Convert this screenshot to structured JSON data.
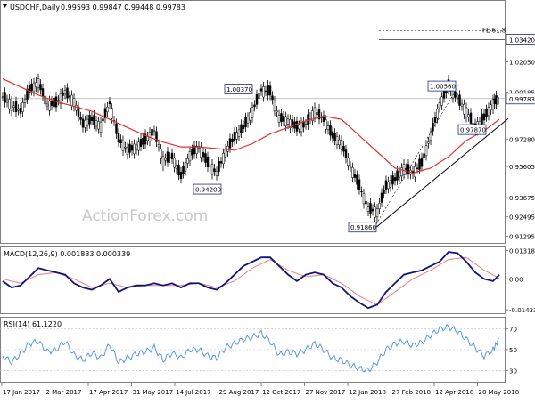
{
  "chart_data": [
    {
      "type": "candlestick",
      "title": "USDCHF,Daily",
      "ohlc_label": "0.99593 0.99847 0.99448 0.99783",
      "ylim": [
        0.9094,
        1.052
      ],
      "y_ticks": [
        "1.02050",
        "1.00185",
        "0.99783",
        "0.97280",
        "0.95605",
        "0.93675",
        "0.92495",
        "0.91295"
      ],
      "y_tick_values": [
        1.0205,
        1.00185,
        0.99783,
        0.9728,
        0.95605,
        0.93675,
        0.92495,
        0.91295
      ],
      "current_price": "0.99783",
      "fib_level": {
        "label": "FE 61.8",
        "value": "1.03420",
        "y": 1.0342
      },
      "watermark": "ActionForex.com",
      "annotations": [
        {
          "text": "1.00370",
          "x": 283,
          "y": 1.0037
        },
        {
          "text": "0.94200",
          "x": 248,
          "y": 0.942
        },
        {
          "text": "0.91860",
          "x": 422,
          "y": 0.9186
        },
        {
          "text": "1.00560",
          "x": 511,
          "y": 1.0056
        },
        {
          "text": "0.97870",
          "x": 545,
          "y": 0.9787
        }
      ],
      "series": [
        {
          "name": "",
          "kind": "close",
          "x": [
            0,
            10,
            20,
            30,
            40,
            50,
            60,
            70,
            80,
            90,
            100,
            110,
            120,
            130,
            140,
            150,
            160,
            170,
            180,
            190,
            200,
            210,
            220,
            230,
            240,
            250,
            260,
            270,
            280,
            290,
            300,
            310,
            320,
            330,
            340,
            350,
            360,
            370,
            380,
            390,
            400,
            410,
            420,
            430,
            440,
            450,
            460,
            470,
            480,
            490,
            500,
            510,
            520,
            530,
            540,
            550,
            557
          ],
          "y": [
            0.999,
            0.994,
            0.99,
            1.003,
            1.008,
            0.994,
            0.995,
            1.002,
            0.996,
            0.982,
            0.985,
            0.981,
            0.995,
            0.973,
            0.966,
            0.968,
            0.972,
            0.978,
            0.96,
            0.962,
            0.95,
            0.963,
            0.968,
            0.958,
            0.952,
            0.965,
            0.974,
            0.98,
            0.99,
            1.003,
            1.002,
            0.986,
            0.984,
            0.98,
            0.982,
            0.99,
            0.985,
            0.975,
            0.97,
            0.956,
            0.944,
            0.93,
            0.928,
            0.944,
            0.948,
            0.955,
            0.952,
            0.958,
            0.975,
            0.994,
            1.0056,
            0.998,
            0.99,
            0.98,
            0.986,
            0.995,
            0.9978
          ]
        },
        {
          "name": "",
          "kind": "moving-average",
          "x": [
            0,
            20,
            40,
            60,
            80,
            100,
            120,
            140,
            160,
            180,
            200,
            220,
            240,
            260,
            280,
            300,
            320,
            340,
            360,
            380,
            400,
            420,
            440,
            460,
            480,
            500,
            520,
            540,
            557
          ],
          "y": [
            1.01,
            1.005,
            1.0,
            0.996,
            0.993,
            0.99,
            0.985,
            0.98,
            0.975,
            0.971,
            0.968,
            0.968,
            0.967,
            0.966,
            0.97,
            0.976,
            0.98,
            0.984,
            0.987,
            0.985,
            0.975,
            0.965,
            0.955,
            0.952,
            0.955,
            0.962,
            0.972,
            0.978,
            0.985
          ]
        }
      ],
      "trendline": {
        "x": [
          422,
          570
        ],
        "y": [
          0.9186,
          0.9855
        ]
      }
    },
    {
      "type": "line",
      "title": "MACD(12,26,9) 0.001883 0.000339",
      "y_ticks": [
        "0.013184",
        "0.00",
        "-0.014339"
      ],
      "y_tick_values": [
        0.013184,
        0,
        -0.014339
      ],
      "ylim": [
        -0.0155,
        0.0142
      ],
      "series": [
        {
          "name": "",
          "kind": "macd",
          "x": [
            0,
            10,
            20,
            30,
            40,
            50,
            60,
            70,
            80,
            90,
            100,
            110,
            120,
            130,
            140,
            150,
            160,
            170,
            180,
            190,
            200,
            210,
            220,
            230,
            240,
            250,
            260,
            270,
            280,
            290,
            300,
            310,
            320,
            330,
            340,
            350,
            360,
            370,
            380,
            390,
            400,
            410,
            420,
            430,
            440,
            450,
            460,
            470,
            480,
            490,
            500,
            510,
            520,
            530,
            540,
            550,
            557
          ],
          "y": [
            -0.001,
            -0.004,
            -0.003,
            0.001,
            0.005,
            0.004,
            0.003,
            0.002,
            -0.002,
            -0.004,
            -0.005,
            -0.003,
            0.0,
            -0.006,
            -0.004,
            -0.003,
            -0.003,
            -0.002,
            -0.003,
            -0.002,
            -0.004,
            -0.002,
            -0.002,
            -0.004,
            -0.005,
            -0.002,
            0.002,
            0.006,
            0.008,
            0.01,
            0.01,
            0.006,
            0.002,
            -0.001,
            0.002,
            0.003,
            0.002,
            -0.002,
            -0.004,
            -0.008,
            -0.011,
            -0.0135,
            -0.012,
            -0.006,
            -0.002,
            0.002,
            0.003,
            0.004,
            0.006,
            0.008,
            0.0125,
            0.012,
            0.008,
            0.003,
            0.0,
            -0.001,
            0.0019
          ]
        },
        {
          "name": "",
          "kind": "signal",
          "x": [
            0,
            20,
            40,
            60,
            80,
            100,
            120,
            140,
            160,
            180,
            200,
            220,
            240,
            260,
            280,
            300,
            320,
            340,
            360,
            380,
            400,
            420,
            440,
            460,
            480,
            500,
            520,
            540,
            557
          ],
          "y": [
            0.0,
            -0.002,
            0.002,
            0.003,
            0.0,
            -0.004,
            -0.002,
            -0.004,
            -0.003,
            -0.003,
            -0.003,
            -0.002,
            -0.004,
            -0.001,
            0.005,
            0.009,
            0.004,
            0.001,
            0.002,
            -0.002,
            -0.008,
            -0.012,
            -0.006,
            0.0,
            0.004,
            0.009,
            0.01,
            0.004,
            0.0003
          ]
        }
      ]
    },
    {
      "type": "line",
      "title": "RSI(14) 61.1220",
      "y_ticks": [
        "70",
        "50",
        "30"
      ],
      "y_tick_values": [
        70,
        50,
        30
      ],
      "ylim": [
        20,
        80
      ],
      "series": [
        {
          "name": "",
          "kind": "rsi",
          "x": [
            0,
            10,
            20,
            30,
            40,
            50,
            60,
            70,
            80,
            90,
            100,
            110,
            120,
            130,
            140,
            150,
            160,
            170,
            180,
            190,
            200,
            210,
            220,
            230,
            240,
            250,
            260,
            270,
            280,
            290,
            300,
            310,
            320,
            330,
            340,
            350,
            360,
            370,
            380,
            390,
            400,
            410,
            420,
            430,
            440,
            450,
            460,
            470,
            480,
            490,
            500,
            510,
            520,
            530,
            540,
            550,
            557
          ],
          "y": [
            44,
            38,
            46,
            56,
            58,
            48,
            50,
            58,
            45,
            40,
            47,
            42,
            55,
            38,
            42,
            46,
            48,
            52,
            40,
            47,
            42,
            50,
            50,
            44,
            42,
            52,
            56,
            60,
            62,
            66,
            58,
            45,
            48,
            46,
            50,
            56,
            50,
            42,
            40,
            35,
            32,
            30,
            38,
            50,
            56,
            58,
            54,
            57,
            64,
            70,
            72,
            68,
            60,
            52,
            44,
            50,
            61.1
          ]
        }
      ]
    }
  ],
  "x_axis_labels": [
    "17 Jan 2017",
    "2 Mar 2017",
    "17 Apr 2017",
    "31 May 2017",
    "14 Jul 2017",
    "29 Aug 2017",
    "12 Oct 2017",
    "27 Nov 2017",
    "12 Jan 2018",
    "27 Feb 2018",
    "12 Apr 2018",
    "28 May 2018"
  ],
  "colors": {
    "price": "#000000",
    "moving_average": "#e03030",
    "trendline": "#000000",
    "macd": "#10157a",
    "signal": "#e08080",
    "rsi": "#4a90e2",
    "label_box_border": "#1c2a8c",
    "watermark": "#c8c8c8"
  }
}
